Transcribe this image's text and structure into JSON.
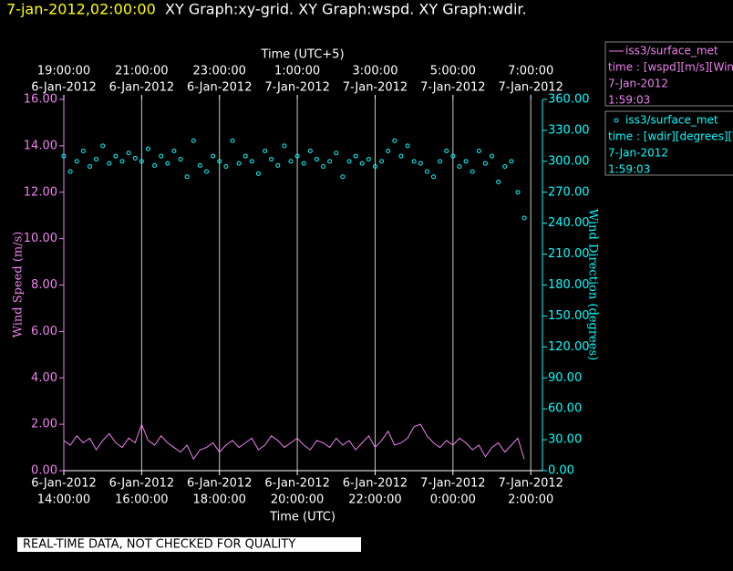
{
  "header": {
    "timestamp": "7-jan-2012,02:00:00",
    "graphs": "XY Graph:xy-grid.  XY Graph:wspd.  XY Graph:wdir."
  },
  "footer_note": "REAL-TIME DATA, NOT CHECKED FOR QUALITY",
  "chart_data": {
    "type": "line-scatter-dual",
    "xlabel": "Time (UTC)",
    "x2label": "Time (UTC+5)",
    "ylabel": "Wind Speed (m/s)",
    "y2label": "Wind Direction (degrees)",
    "xlim": [
      "2012-01-06T14:00",
      "2012-01-07T02:18"
    ],
    "xticks": [
      {
        "value": "2012-01-06T14:00",
        "label": [
          "6-Jan-2012",
          "14:00:00"
        ]
      },
      {
        "value": "2012-01-06T16:00",
        "label": [
          "6-Jan-2012",
          "16:00:00"
        ]
      },
      {
        "value": "2012-01-06T18:00",
        "label": [
          "6-Jan-2012",
          "18:00:00"
        ]
      },
      {
        "value": "2012-01-06T20:00",
        "label": [
          "6-Jan-2012",
          "20:00:00"
        ]
      },
      {
        "value": "2012-01-06T22:00",
        "label": [
          "6-Jan-2012",
          "22:00:00"
        ]
      },
      {
        "value": "2012-01-07T00:00",
        "label": [
          "7-Jan-2012",
          "0:00:00"
        ]
      },
      {
        "value": "2012-01-07T02:00",
        "label": [
          "7-Jan-2012",
          "2:00:00"
        ]
      }
    ],
    "x2ticks": [
      {
        "value": "2012-01-06T14:00",
        "label": [
          "19:00:00",
          "6-Jan-2012"
        ]
      },
      {
        "value": "2012-01-06T16:00",
        "label": [
          "21:00:00",
          "6-Jan-2012"
        ]
      },
      {
        "value": "2012-01-06T18:00",
        "label": [
          "23:00:00",
          "6-Jan-2012"
        ]
      },
      {
        "value": "2012-01-06T20:00",
        "label": [
          "1:00:00",
          "7-Jan-2012"
        ]
      },
      {
        "value": "2012-01-06T22:00",
        "label": [
          "3:00:00",
          "7-Jan-2012"
        ]
      },
      {
        "value": "2012-01-07T00:00",
        "label": [
          "5:00:00",
          "7-Jan-2012"
        ]
      },
      {
        "value": "2012-01-07T02:00",
        "label": [
          "7:00:00",
          "7-Jan-2012"
        ]
      }
    ],
    "ylim": [
      0,
      16
    ],
    "yticks": [
      {
        "value": 0,
        "label": "0.00"
      },
      {
        "value": 2,
        "label": "2.00"
      },
      {
        "value": 4,
        "label": "4.00"
      },
      {
        "value": 6,
        "label": "6.00"
      },
      {
        "value": 8,
        "label": "8.00"
      },
      {
        "value": 10,
        "label": "10.00"
      },
      {
        "value": 12,
        "label": "12.00"
      },
      {
        "value": 14,
        "label": "14.00"
      },
      {
        "value": 16,
        "label": "16.00"
      }
    ],
    "y2lim": [
      0,
      360
    ],
    "y2ticks": [
      {
        "value": 0,
        "label": "0.00"
      },
      {
        "value": 30,
        "label": "30.00"
      },
      {
        "value": 60,
        "label": "60.00"
      },
      {
        "value": 90,
        "label": "90.00"
      },
      {
        "value": 120,
        "label": "120.00"
      },
      {
        "value": 150,
        "label": "150.00"
      },
      {
        "value": 180,
        "label": "180.00"
      },
      {
        "value": 210,
        "label": "210.00"
      },
      {
        "value": 240,
        "label": "240.00"
      },
      {
        "value": 270,
        "label": "270.00"
      },
      {
        "value": 300,
        "label": "300.00"
      },
      {
        "value": 330,
        "label": "330.00"
      },
      {
        "value": 360,
        "label": "360.00"
      }
    ],
    "grid": true,
    "x": [
      "2012-01-06T14:00",
      "2012-01-06T14:10",
      "2012-01-06T14:20",
      "2012-01-06T14:30",
      "2012-01-06T14:40",
      "2012-01-06T14:50",
      "2012-01-06T15:00",
      "2012-01-06T15:10",
      "2012-01-06T15:20",
      "2012-01-06T15:30",
      "2012-01-06T15:40",
      "2012-01-06T15:50",
      "2012-01-06T16:00",
      "2012-01-06T16:10",
      "2012-01-06T16:20",
      "2012-01-06T16:30",
      "2012-01-06T16:40",
      "2012-01-06T16:50",
      "2012-01-06T17:00",
      "2012-01-06T17:10",
      "2012-01-06T17:20",
      "2012-01-06T17:30",
      "2012-01-06T17:40",
      "2012-01-06T17:50",
      "2012-01-06T18:00",
      "2012-01-06T18:10",
      "2012-01-06T18:20",
      "2012-01-06T18:30",
      "2012-01-06T18:40",
      "2012-01-06T18:50",
      "2012-01-06T19:00",
      "2012-01-06T19:10",
      "2012-01-06T19:20",
      "2012-01-06T19:30",
      "2012-01-06T19:40",
      "2012-01-06T19:50",
      "2012-01-06T20:00",
      "2012-01-06T20:10",
      "2012-01-06T20:20",
      "2012-01-06T20:30",
      "2012-01-06T20:40",
      "2012-01-06T20:50",
      "2012-01-06T21:00",
      "2012-01-06T21:10",
      "2012-01-06T21:20",
      "2012-01-06T21:30",
      "2012-01-06T21:40",
      "2012-01-06T21:50",
      "2012-01-06T22:00",
      "2012-01-06T22:10",
      "2012-01-06T22:20",
      "2012-01-06T22:30",
      "2012-01-06T22:40",
      "2012-01-06T22:50",
      "2012-01-06T23:00",
      "2012-01-06T23:10",
      "2012-01-06T23:20",
      "2012-01-06T23:30",
      "2012-01-06T23:40",
      "2012-01-06T23:50",
      "2012-01-07T00:00",
      "2012-01-07T00:10",
      "2012-01-07T00:20",
      "2012-01-07T00:30",
      "2012-01-07T00:40",
      "2012-01-07T00:50",
      "2012-01-07T01:00",
      "2012-01-07T01:10",
      "2012-01-07T01:20",
      "2012-01-07T01:30",
      "2012-01-07T01:40",
      "2012-01-07T01:50"
    ],
    "series": [
      {
        "name": "iss3/surface_met",
        "color": "#ee82ee",
        "axis": "y",
        "marker": "line",
        "legend_detail": [
          "time : [wspd][m/s][Wind",
          "7-Jan-2012",
          "1:59:03"
        ],
        "values": [
          1.3,
          1.1,
          1.5,
          1.2,
          1.4,
          0.9,
          1.3,
          1.6,
          1.2,
          1.0,
          1.4,
          1.2,
          2.0,
          1.3,
          1.1,
          1.5,
          1.2,
          1.0,
          0.8,
          1.1,
          0.5,
          0.9,
          1.0,
          1.2,
          0.8,
          1.1,
          1.3,
          1.0,
          1.2,
          1.4,
          0.9,
          1.1,
          1.5,
          1.3,
          1.0,
          1.2,
          1.4,
          1.1,
          0.9,
          1.3,
          1.2,
          1.0,
          1.4,
          1.1,
          1.3,
          0.9,
          1.2,
          1.5,
          1.0,
          1.3,
          1.7,
          1.1,
          1.2,
          1.4,
          1.9,
          2.0,
          1.5,
          1.2,
          1.0,
          1.3,
          1.1,
          1.4,
          1.2,
          0.9,
          1.1,
          0.6,
          1.0,
          1.2,
          0.8,
          1.1,
          1.4,
          0.5
        ]
      },
      {
        "name": "iss3/surface_met",
        "color": "#00ffff",
        "axis": "y2",
        "marker": "circle",
        "legend_detail": [
          "time : [wdir][degrees][V",
          "7-Jan-2012",
          "1:59:03"
        ],
        "values": [
          305,
          290,
          300,
          310,
          295,
          302,
          315,
          298,
          305,
          300,
          308,
          303,
          300,
          312,
          296,
          305,
          298,
          310,
          302,
          285,
          320,
          296,
          290,
          305,
          300,
          295,
          320,
          298,
          305,
          300,
          288,
          310,
          302,
          296,
          315,
          300,
          305,
          298,
          310,
          302,
          295,
          300,
          308,
          285,
          300,
          305,
          298,
          302,
          295,
          300,
          310,
          320,
          305,
          315,
          300,
          298,
          290,
          285,
          300,
          310,
          305,
          295,
          300,
          290,
          310,
          298,
          305,
          280,
          295,
          300,
          270,
          245
        ]
      }
    ]
  }
}
